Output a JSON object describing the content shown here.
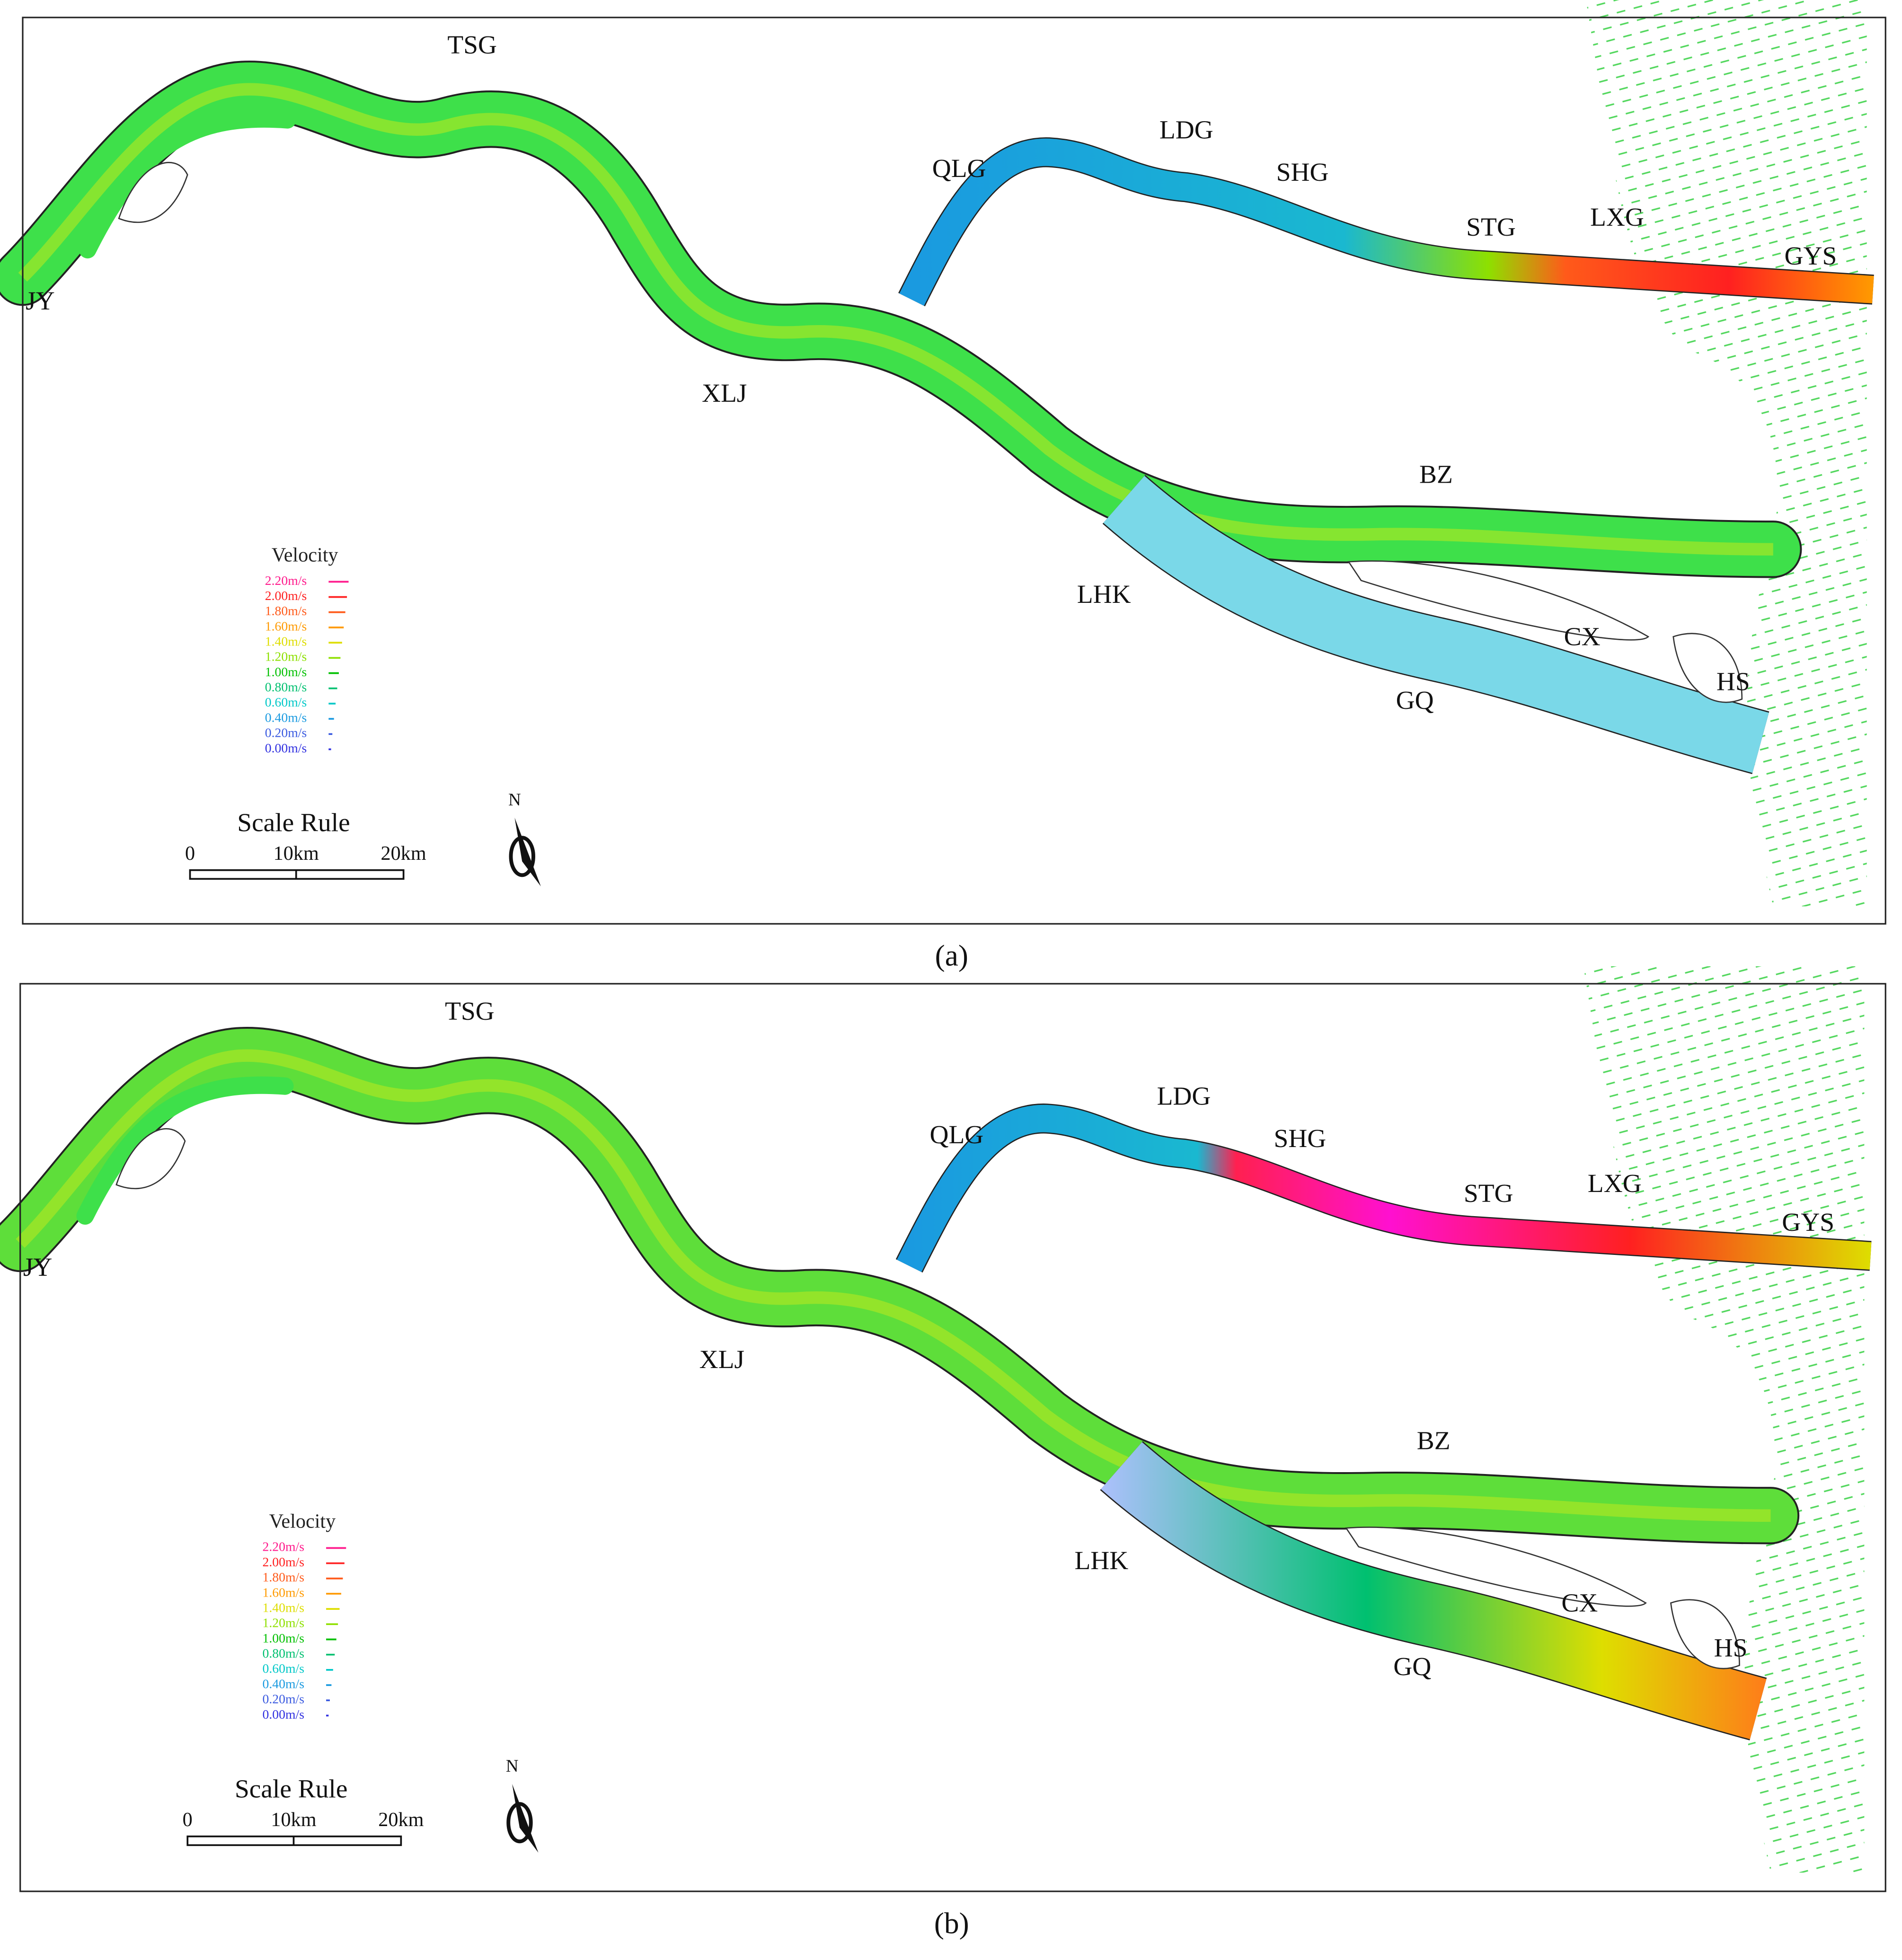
{
  "panels": [
    {
      "caption": "(a)",
      "place_labels": [
        "TSG",
        "QLG",
        "LDG",
        "SHG",
        "STG",
        "LXG",
        "GYS",
        "JY",
        "XLJ",
        "BZ",
        "LHK",
        "CX",
        "HS",
        "GQ"
      ],
      "legend": {
        "title": "Velocity",
        "entries": [
          {
            "label": "2.20m/s",
            "color": "#ff1a8c"
          },
          {
            "label": "2.00m/s",
            "color": "#ff2020"
          },
          {
            "label": "1.80m/s",
            "color": "#ff5a1a"
          },
          {
            "label": "1.60m/s",
            "color": "#ff9a00"
          },
          {
            "label": "1.40m/s",
            "color": "#dede00"
          },
          {
            "label": "1.20m/s",
            "color": "#8ee000"
          },
          {
            "label": "1.00m/s",
            "color": "#00c000"
          },
          {
            "label": "0.80m/s",
            "color": "#00c070"
          },
          {
            "label": "0.60m/s",
            "color": "#00c8c8"
          },
          {
            "label": "0.40m/s",
            "color": "#1a9ae0"
          },
          {
            "label": "0.20m/s",
            "color": "#3a5ae0"
          },
          {
            "label": "0.00m/s",
            "color": "#3030e0"
          }
        ]
      },
      "scale_rule": {
        "title": "Scale Rule",
        "ticks": [
          "0",
          "10km",
          "20km"
        ]
      },
      "north": "N"
    },
    {
      "caption": "(b)",
      "place_labels": [
        "TSG",
        "QLG",
        "LDG",
        "SHG",
        "STG",
        "LXG",
        "GYS",
        "JY",
        "XLJ",
        "BZ",
        "LHK",
        "CX",
        "HS",
        "GQ"
      ],
      "legend": {
        "title": "Velocity",
        "entries": [
          {
            "label": "2.20m/s",
            "color": "#ff1a8c"
          },
          {
            "label": "2.00m/s",
            "color": "#ff2020"
          },
          {
            "label": "1.80m/s",
            "color": "#ff5a1a"
          },
          {
            "label": "1.60m/s",
            "color": "#ff9a00"
          },
          {
            "label": "1.40m/s",
            "color": "#dede00"
          },
          {
            "label": "1.20m/s",
            "color": "#8ee000"
          },
          {
            "label": "1.00m/s",
            "color": "#00c000"
          },
          {
            "label": "0.80m/s",
            "color": "#00c070"
          },
          {
            "label": "0.60m/s",
            "color": "#00c8c8"
          },
          {
            "label": "0.40m/s",
            "color": "#1a9ae0"
          },
          {
            "label": "0.20m/s",
            "color": "#3a5ae0"
          },
          {
            "label": "0.00m/s",
            "color": "#3030e0"
          }
        ]
      },
      "scale_rule": {
        "title": "Scale Rule",
        "ticks": [
          "0",
          "10km",
          "20km"
        ]
      },
      "north": "N"
    }
  ]
}
